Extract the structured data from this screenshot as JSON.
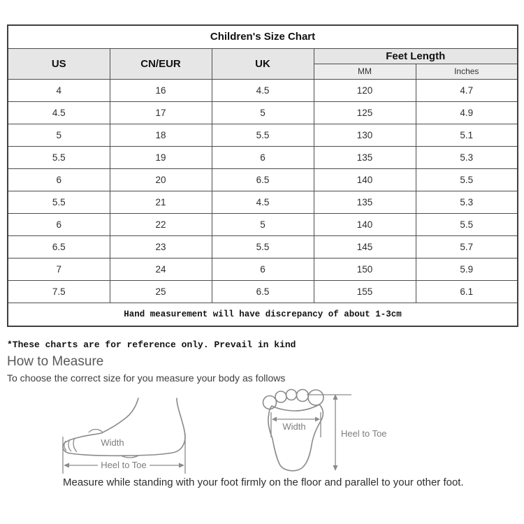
{
  "size_chart": {
    "title": "Children's Size Chart",
    "columns": [
      "US",
      "CN/EUR",
      "UK"
    ],
    "feet_length": {
      "label": "Feet Length",
      "subcolumns": [
        "MM",
        "Inches"
      ]
    },
    "rows": [
      [
        "4",
        "16",
        "4.5",
        "120",
        "4.7"
      ],
      [
        "4.5",
        "17",
        "5",
        "125",
        "4.9"
      ],
      [
        "5",
        "18",
        "5.5",
        "130",
        "5.1"
      ],
      [
        "5.5",
        "19",
        "6",
        "135",
        "5.3"
      ],
      [
        "6",
        "20",
        "6.5",
        "140",
        "5.5"
      ],
      [
        "5.5",
        "21",
        "4.5",
        "135",
        "5.3"
      ],
      [
        "6",
        "22",
        "5",
        "140",
        "5.5"
      ],
      [
        "6.5",
        "23",
        "5.5",
        "145",
        "5.7"
      ],
      [
        "7",
        "24",
        "6",
        "150",
        "5.9"
      ],
      [
        "7.5",
        "25",
        "6.5",
        "155",
        "6.1"
      ]
    ],
    "footer_note": "Hand measurement will have discrepancy of about 1-3cm"
  },
  "reference_note": "*These charts are for reference only. Prevail in kind",
  "how_to_measure": {
    "heading": "How to Measure",
    "subheading": "To choose the correct size for you measure your body as follows",
    "caption": "Measure while standing with your foot firmly on the floor and parallel to your other foot.",
    "side_view_diagram": {
      "width_label": "Width",
      "length_label": "Heel to Toe"
    },
    "top_view_diagram": {
      "width_label": "Width",
      "length_label": "Heel to Toe"
    }
  },
  "colors": {
    "header_bg": "#e6e6e6",
    "table_border": "#4d4d4d",
    "diagram_line": "#8a8a8a",
    "heading_text": "#595959"
  }
}
